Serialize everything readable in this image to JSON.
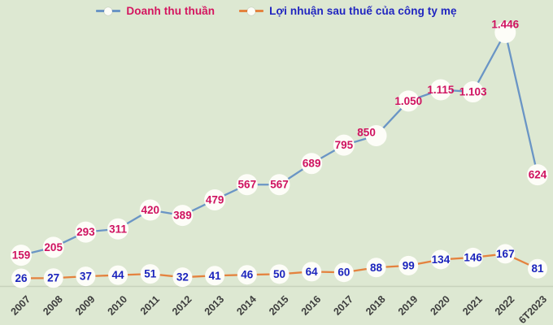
{
  "legend": {
    "items": [
      {
        "label": "Doanh thu thuần",
        "line_color": "#6a95c5",
        "text_color": "#d4155f"
      },
      {
        "label": "Lợi nhuận sau thuế của công ty mẹ",
        "line_color": "#e4823e",
        "text_color": "#2025c0"
      }
    ]
  },
  "chart_data": {
    "type": "line",
    "title": "",
    "xlabel": "",
    "ylabel": "",
    "categories": [
      "2007",
      "2008",
      "2009",
      "2010",
      "2011",
      "2012",
      "2013",
      "2014",
      "2015",
      "2016",
      "2017",
      "2018",
      "2019",
      "2020",
      "2021",
      "2022",
      "6T2023"
    ],
    "series": [
      {
        "name": "Doanh thu thuần",
        "values": [
          159,
          205,
          293,
          311,
          420,
          389,
          479,
          567,
          567,
          689,
          795,
          850,
          1050,
          1115,
          1103,
          1446,
          624
        ],
        "labels": [
          "159",
          "205",
          "293",
          "311",
          "420",
          "389",
          "479",
          "567",
          "567",
          "689",
          "795",
          "850",
          "1.050",
          "1.115",
          "1.103",
          "1.446",
          "624"
        ],
        "color": "#6a95c5",
        "label_color": "#cf1260",
        "marker_radius": 13,
        "label_offsets": {
          "11": [
            -12,
            -4
          ],
          "15": [
            0,
            -10
          ]
        }
      },
      {
        "name": "Lợi nhuận sau thuế của công ty mẹ",
        "values": [
          26,
          27,
          37,
          44,
          51,
          32,
          41,
          46,
          50,
          64,
          60,
          88,
          99,
          134,
          146,
          167,
          81
        ],
        "labels": [
          "26",
          "27",
          "37",
          "44",
          "51",
          "32",
          "41",
          "46",
          "50",
          "64",
          "60",
          "88",
          "99",
          "134",
          "146",
          "167",
          "81"
        ],
        "color": "#e4823e",
        "label_color": "#1b24bd",
        "marker_radius": 12,
        "label_offsets": {}
      }
    ],
    "ylim": [
      0,
      1550
    ],
    "grid": false,
    "legend_position": "top",
    "background_color": "#dde8d2",
    "axis_line_color": "#c7d2bc",
    "tick_label_color": "#3d3d3d",
    "marker_fill": "#fdfdf8"
  }
}
